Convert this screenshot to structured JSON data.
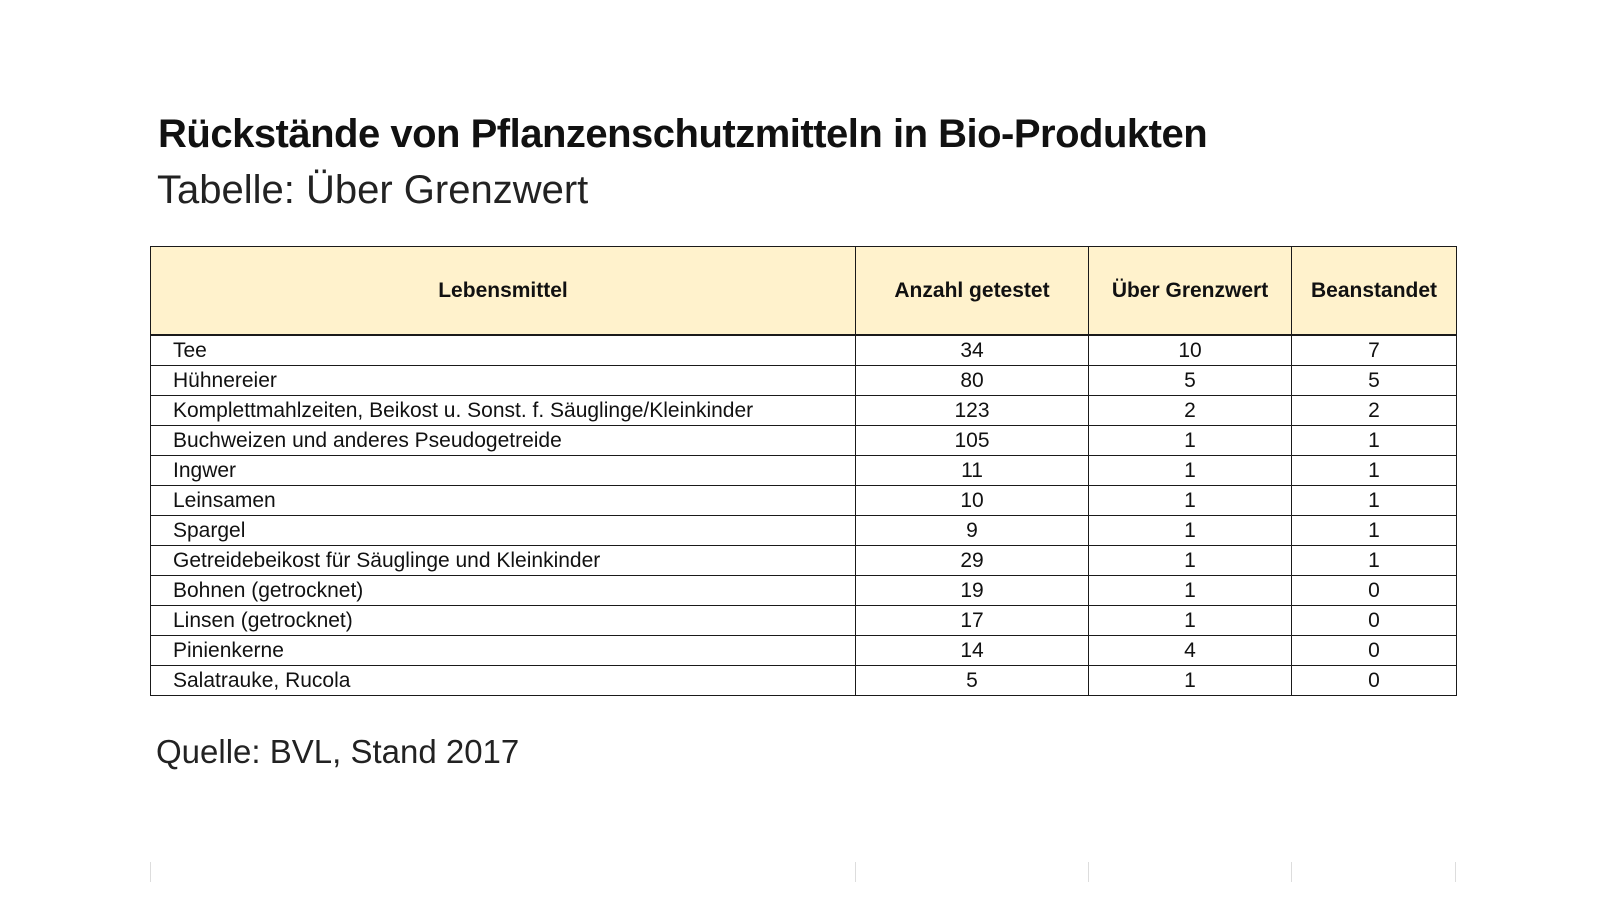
{
  "chart_data": {
    "type": "table",
    "title": "Rückstände von Pflanzenschutzmitteln in Bio-Produkten",
    "subtitle": "Tabelle: Über Grenzwert",
    "columns": [
      "Lebensmittel",
      "Anzahl getestet",
      "Über Grenzwert",
      "Beanstandet"
    ],
    "rows": [
      [
        "Tee",
        "34",
        "10",
        "7"
      ],
      [
        "Hühnereier",
        "80",
        "5",
        "5"
      ],
      [
        "Komplettmahlzeiten, Beikost u. Sonst. f. Säuglinge/Kleinkinder",
        "123",
        "2",
        "2"
      ],
      [
        "Buchweizen und anderes Pseudogetreide",
        "105",
        "1",
        "1"
      ],
      [
        "Ingwer",
        "11",
        "1",
        "1"
      ],
      [
        "Leinsamen",
        "10",
        "1",
        "1"
      ],
      [
        "Spargel",
        "9",
        "1",
        "1"
      ],
      [
        "Getreidebeikost für Säuglinge und Kleinkinder",
        "29",
        "1",
        "1"
      ],
      [
        "Bohnen (getrocknet)",
        "19",
        "1",
        "0"
      ],
      [
        "Linsen (getrocknet)",
        "17",
        "1",
        "0"
      ],
      [
        "Pinienkerne",
        "14",
        "4",
        "0"
      ],
      [
        "Salatrauke, Rucola",
        "5",
        "1",
        "0"
      ]
    ],
    "source": "Quelle: BVL, Stand 2017"
  },
  "colors": {
    "header_background": "#fff2cc",
    "border": "#1a1a1a"
  }
}
